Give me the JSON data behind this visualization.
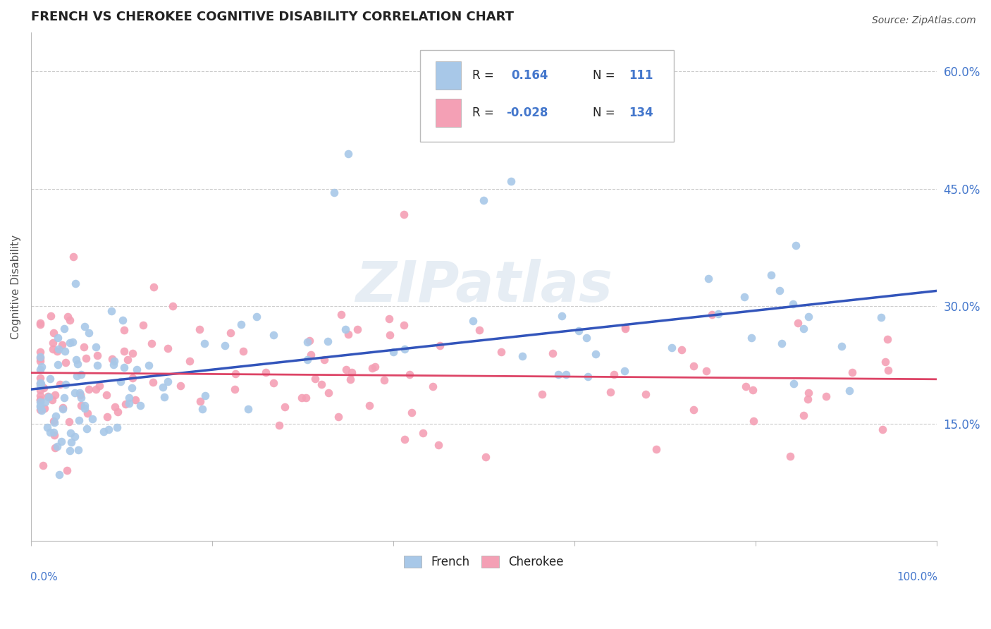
{
  "title": "FRENCH VS CHEROKEE COGNITIVE DISABILITY CORRELATION CHART",
  "source": "Source: ZipAtlas.com",
  "ylabel": "Cognitive Disability",
  "xlim": [
    0,
    1.0
  ],
  "ylim": [
    0,
    0.65
  ],
  "yticks": [
    0.15,
    0.3,
    0.45,
    0.6
  ],
  "ytick_labels": [
    "15.0%",
    "30.0%",
    "45.0%",
    "60.0%"
  ],
  "blue_color": "#a8c8e8",
  "pink_color": "#f4a0b5",
  "line_blue": "#3355bb",
  "line_pink": "#dd4466",
  "bg_color": "#ffffff",
  "grid_color": "#cccccc",
  "title_color": "#222222",
  "axis_label_color": "#4477cc",
  "watermark": "ZIPatlas",
  "legend_items": [
    {
      "R": "0.164",
      "N": "111"
    },
    {
      "R": "-0.028",
      "N": "134"
    }
  ],
  "bottom_labels": [
    "French",
    "Cherokee"
  ],
  "french_seed": 7,
  "cherokee_seed": 13
}
